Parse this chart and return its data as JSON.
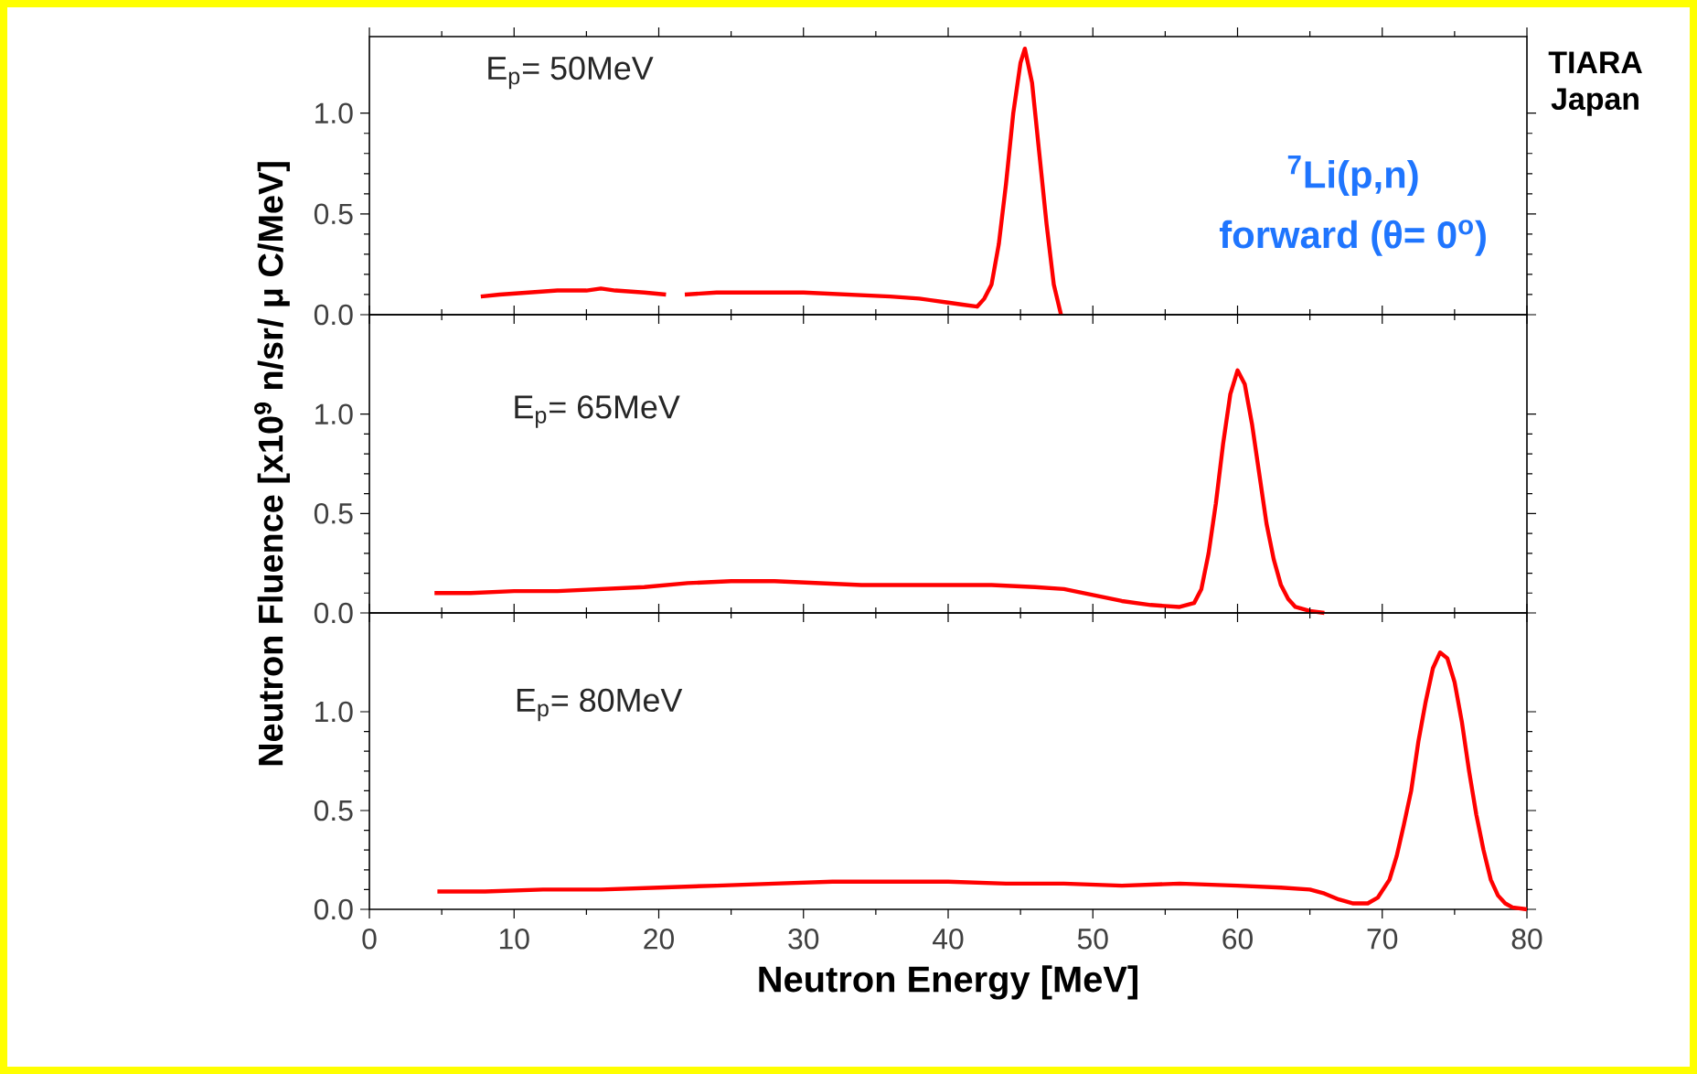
{
  "chart_data": [
    {
      "type": "line",
      "x": [
        7.7,
        9,
        11,
        13,
        15,
        16,
        17,
        19,
        20.5,
        21,
        21.8,
        24,
        27,
        30,
        33,
        36,
        38,
        40,
        41,
        42,
        42.5,
        43,
        43.5,
        44,
        44.5,
        45,
        45.3,
        45.8,
        46.3,
        46.8,
        47.3,
        47.8
      ],
      "series": [
        {
          "color": "#ff0000",
          "values": [
            0.09,
            0.1,
            0.11,
            0.12,
            0.12,
            0.13,
            0.12,
            0.11,
            0.1,
            null,
            0.1,
            0.11,
            0.11,
            0.11,
            0.1,
            0.09,
            0.08,
            0.06,
            0.05,
            0.04,
            0.08,
            0.15,
            0.35,
            0.65,
            1.0,
            1.25,
            1.32,
            1.15,
            0.8,
            0.45,
            0.15,
            0.0
          ]
        }
      ],
      "xlim": [
        0,
        80
      ],
      "ylim": [
        0,
        1.38
      ],
      "xticks": [
        0,
        10,
        20,
        30,
        40,
        50,
        60,
        70,
        80
      ],
      "yticks": [
        {
          "value": 0,
          "label": "0.0"
        },
        {
          "value": 0.5,
          "label": "0.5"
        },
        {
          "value": 1,
          "label": "1.0"
        }
      ],
      "tick_labels": "y",
      "annotations": [
        "E$_{p}$= 50MeV",
        "TIARA Japan",
        "$^{7}$Li(p,n)",
        "forward (θ= 0$^{o}$)"
      ]
    },
    {
      "type": "line",
      "x": [
        4.5,
        7,
        10,
        13,
        16,
        19,
        22,
        25,
        28,
        31,
        34,
        37,
        40,
        43,
        46,
        48,
        50,
        52,
        54,
        56,
        57,
        57.5,
        58,
        58.5,
        59,
        59.5,
        60,
        60.5,
        61,
        61.5,
        62,
        62.5,
        63,
        63.5,
        64,
        65,
        66
      ],
      "series": [
        {
          "color": "#ff0000",
          "values": [
            0.1,
            0.1,
            0.11,
            0.11,
            0.12,
            0.13,
            0.15,
            0.16,
            0.16,
            0.15,
            0.14,
            0.14,
            0.14,
            0.14,
            0.13,
            0.12,
            0.09,
            0.06,
            0.04,
            0.03,
            0.05,
            0.12,
            0.3,
            0.55,
            0.85,
            1.1,
            1.22,
            1.15,
            0.95,
            0.7,
            0.45,
            0.27,
            0.14,
            0.07,
            0.03,
            0.01,
            0.0
          ]
        }
      ],
      "xlim": [
        0,
        80
      ],
      "ylim": [
        0,
        1.5
      ],
      "xticks": [
        0,
        10,
        20,
        30,
        40,
        50,
        60,
        70,
        80
      ],
      "yticks": [
        {
          "value": 0,
          "label": "0.0"
        },
        {
          "value": 0.5,
          "label": "0.5"
        },
        {
          "value": 1,
          "label": "1.0"
        }
      ],
      "tick_labels": "y",
      "ylabel": "Neutron Fluence  [x10$^{9}$ n/sr/ μ C/MeV]",
      "annotations": [
        "E$_{p}$= 65MeV"
      ]
    },
    {
      "type": "line",
      "x": [
        4.7,
        8,
        12,
        16,
        20,
        24,
        28,
        32,
        36,
        40,
        44,
        48,
        52,
        56,
        60,
        63,
        65,
        66,
        67,
        68,
        69,
        69.7,
        70.5,
        71,
        71.5,
        72,
        72.5,
        73,
        73.5,
        74,
        74.5,
        75,
        75.5,
        76,
        76.5,
        77,
        77.5,
        78,
        78.5,
        79,
        80
      ],
      "series": [
        {
          "color": "#ff0000",
          "values": [
            0.09,
            0.09,
            0.1,
            0.1,
            0.11,
            0.12,
            0.13,
            0.14,
            0.14,
            0.14,
            0.13,
            0.13,
            0.12,
            0.13,
            0.12,
            0.11,
            0.1,
            0.08,
            0.05,
            0.03,
            0.03,
            0.06,
            0.15,
            0.27,
            0.43,
            0.6,
            0.85,
            1.05,
            1.22,
            1.3,
            1.27,
            1.15,
            0.95,
            0.7,
            0.48,
            0.3,
            0.15,
            0.07,
            0.03,
            0.01,
            0.0
          ]
        }
      ],
      "xlim": [
        0,
        80
      ],
      "ylim": [
        0,
        1.5
      ],
      "xticks": [
        0,
        10,
        20,
        30,
        40,
        50,
        60,
        70,
        80
      ],
      "yticks": [
        {
          "value": 0,
          "label": "0.0"
        },
        {
          "value": 0.5,
          "label": "0.5"
        },
        {
          "value": 1,
          "label": "1.0"
        }
      ],
      "xlabel": "Neutron Energy  [MeV]",
      "annotations": [
        "E$_{p}$= 80MeV"
      ]
    }
  ]
}
